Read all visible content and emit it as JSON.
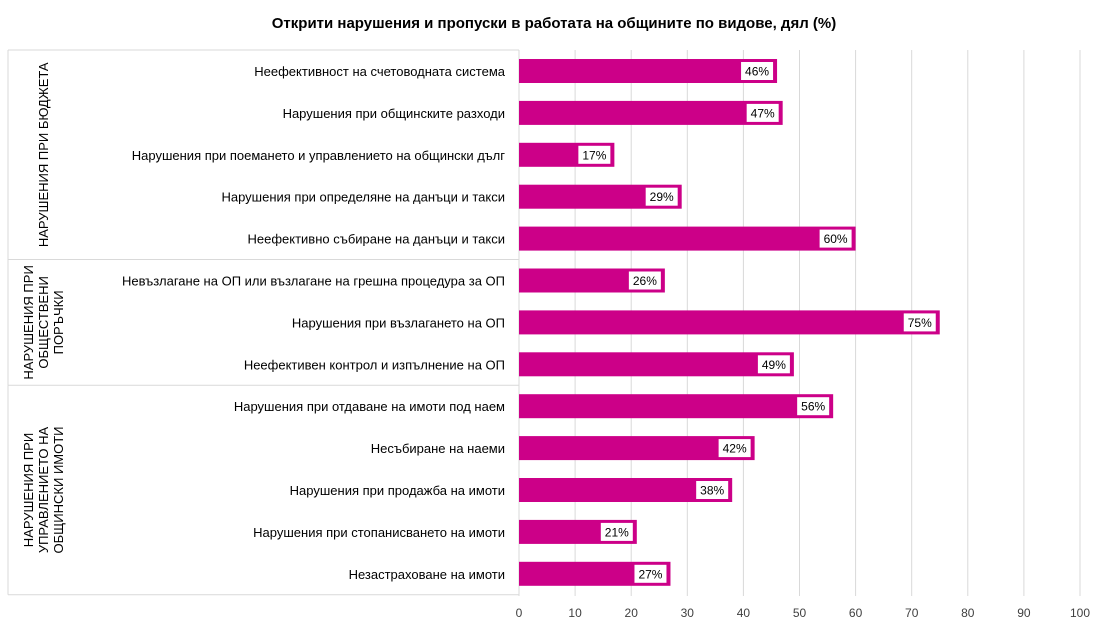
{
  "chart_data": {
    "type": "bar",
    "orientation": "horizontal",
    "title": "Открити нарушения и пропуски в работата на общините по видове, дял (%)",
    "xlim": [
      0,
      100
    ],
    "xticks": [
      0,
      10,
      20,
      30,
      40,
      50,
      60,
      70,
      80,
      90,
      100
    ],
    "grid": true,
    "value_suffix": "%",
    "bar_color": "#cc0088",
    "groups": [
      {
        "label_lines": [
          "НАРУШЕНИЯ ПРИ БЮДЖЕТА"
        ],
        "categories": [
          "Неефективност на счетоводната система",
          "Нарушения при общинските разходи",
          "Нарушения при поемането и управлението на общински дълг",
          "Нарушения при определяне на данъци и такси",
          "Неефективно събиране на данъци и такси"
        ],
        "values": [
          46,
          47,
          17,
          29,
          60
        ]
      },
      {
        "label_lines": [
          "НАРУШЕНИЯ ПРИ",
          "ОБЩЕСТВЕНИ",
          "ПОРЪЧКИ"
        ],
        "categories": [
          "Невъзлагане на ОП или възлагане на грешна процедура за ОП",
          "Нарушения при възлагането на ОП",
          "Неефективен контрол  и изпълнение на ОП"
        ],
        "values": [
          26,
          75,
          49
        ]
      },
      {
        "label_lines": [
          "НАРУШЕНИЯ ПРИ",
          "УПРАВЛЕНИЕТО НА",
          "ОБЩИНСКИ ИМОТИ"
        ],
        "categories": [
          "Нарушения при отдаване на имоти под наем",
          "Несъбиране на наеми",
          "Нарушения при продажба на имоти",
          "Нарушения при стопанисването на имоти",
          "Незастраховане на имоти"
        ],
        "values": [
          56,
          42,
          38,
          21,
          27
        ]
      }
    ]
  }
}
